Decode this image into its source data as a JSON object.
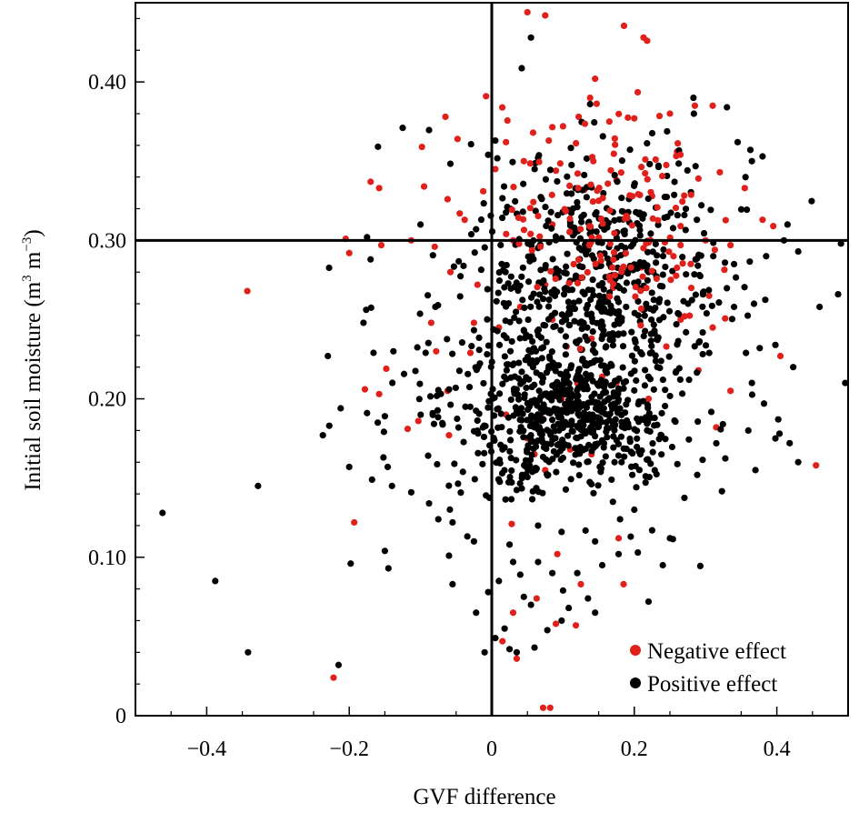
{
  "chart_data": {
    "type": "scatter",
    "title": "",
    "xlabel": "GVF difference",
    "ylabel_parts": [
      "Initial soil moisture (m",
      "3",
      " m",
      "−3",
      ")"
    ],
    "xlim": [
      -0.5,
      0.5
    ],
    "ylim": [
      0,
      0.45
    ],
    "x_ticks": [
      -0.4,
      -0.2,
      0,
      0.2,
      0.4
    ],
    "x_tick_labels": [
      "−0.4",
      "−0.2",
      "0",
      "0.2",
      "0.4"
    ],
    "y_ticks": [
      0,
      0.1,
      0.2,
      0.3,
      0.4
    ],
    "y_tick_labels": [
      "0",
      "0.10",
      "0.20",
      "0.30",
      "0.40"
    ],
    "reference_lines": {
      "x": 0,
      "y": 0.3
    },
    "grid": false,
    "legend_position": "bottom-right",
    "series": [
      {
        "name": "Negative effect",
        "color": "#e0201b",
        "points": [
          [
            0.05,
            0.444
          ],
          [
            0.075,
            0.442
          ],
          [
            0.213,
            0.428
          ],
          [
            0.218,
            0.426
          ],
          [
            -0.008,
            0.391
          ],
          [
            0.145,
            0.402
          ],
          [
            -0.065,
            0.378
          ],
          [
            -0.098,
            0.359
          ],
          [
            -0.048,
            0.364
          ],
          [
            -0.17,
            0.337
          ],
          [
            -0.158,
            0.333
          ],
          [
            -0.095,
            0.334
          ],
          [
            -0.062,
            0.326
          ],
          [
            -0.045,
            0.317
          ],
          [
            -0.038,
            0.313
          ],
          [
            -0.012,
            0.331
          ],
          [
            0.005,
            0.345
          ],
          [
            0.02,
            0.362
          ],
          [
            0.058,
            0.368
          ],
          [
            0.08,
            0.363
          ],
          [
            0.1,
            0.372
          ],
          [
            0.122,
            0.378
          ],
          [
            0.138,
            0.39
          ],
          [
            0.165,
            0.375
          ],
          [
            0.2,
            0.377
          ],
          [
            0.25,
            0.38
          ],
          [
            0.285,
            0.385
          ],
          [
            0.31,
            0.385
          ],
          [
            0.32,
            0.343
          ],
          [
            0.355,
            0.333
          ],
          [
            0.38,
            0.313
          ],
          [
            0.395,
            0.309
          ],
          [
            0.29,
            0.339
          ],
          [
            0.26,
            0.356
          ],
          [
            0.23,
            0.351
          ],
          [
            0.175,
            0.338
          ],
          [
            0.13,
            0.332
          ],
          [
            0.09,
            0.344
          ],
          [
            0.045,
            0.35
          ],
          [
            0.03,
            0.3
          ],
          [
            0.085,
            0.31
          ],
          [
            0.15,
            0.325
          ],
          [
            0.185,
            0.318
          ],
          [
            0.225,
            0.328
          ],
          [
            0.265,
            0.309
          ],
          [
            0.3,
            0.3
          ],
          [
            0.335,
            0.297
          ],
          [
            0.21,
            0.283
          ],
          [
            0.17,
            0.27
          ],
          [
            0.115,
            0.285
          ],
          [
            0.075,
            0.272
          ],
          [
            0.04,
            0.258
          ],
          [
            0.01,
            0.245
          ],
          [
            -0.025,
            0.248
          ],
          [
            -0.02,
            0.272
          ],
          [
            -0.058,
            0.28
          ],
          [
            -0.08,
            0.296
          ],
          [
            -0.113,
            0.3
          ],
          [
            -0.155,
            0.297
          ],
          [
            -0.205,
            0.301
          ],
          [
            -0.2,
            0.292
          ],
          [
            -0.343,
            0.268
          ],
          [
            -0.085,
            0.248
          ],
          [
            -0.078,
            0.23
          ],
          [
            -0.03,
            0.229
          ],
          [
            0.085,
            0.25
          ],
          [
            0.105,
            0.233
          ],
          [
            0.14,
            0.238
          ],
          [
            0.155,
            0.214
          ],
          [
            0.12,
            0.21
          ],
          [
            0.098,
            0.2
          ],
          [
            0.07,
            0.188
          ],
          [
            0.05,
            0.175
          ],
          [
            0.06,
            0.165
          ],
          [
            0.075,
            0.155
          ],
          [
            0.11,
            0.168
          ],
          [
            0.14,
            0.165
          ],
          [
            0.175,
            0.21
          ],
          [
            0.22,
            0.2
          ],
          [
            0.245,
            0.233
          ],
          [
            0.265,
            0.25
          ],
          [
            0.28,
            0.27
          ],
          [
            0.255,
            0.29
          ],
          [
            0.305,
            0.265
          ],
          [
            0.31,
            0.245
          ],
          [
            0.29,
            0.218
          ],
          [
            0.315,
            0.182
          ],
          [
            0.335,
            0.205
          ],
          [
            0.405,
            0.227
          ],
          [
            0.455,
            0.158
          ],
          [
            -0.148,
            0.219
          ],
          [
            -0.178,
            0.206
          ],
          [
            -0.158,
            0.203
          ],
          [
            -0.118,
            0.181
          ],
          [
            -0.103,
            0.186
          ],
          [
            -0.06,
            0.177
          ],
          [
            -0.062,
            0.205
          ],
          [
            -0.193,
            0.122
          ],
          [
            0.02,
            0.19
          ],
          [
            0.028,
            0.121
          ],
          [
            0.092,
            0.102
          ],
          [
            0.178,
            0.112
          ],
          [
            0.125,
            0.083
          ],
          [
            0.185,
            0.083
          ],
          [
            0.03,
            0.065
          ],
          [
            0.063,
            0.074
          ],
          [
            0.09,
            0.058
          ],
          [
            0.118,
            0.057
          ],
          [
            0.015,
            0.047
          ],
          [
            0.035,
            0.036
          ],
          [
            -0.222,
            0.024
          ],
          [
            0.072,
            0.005
          ],
          [
            0.082,
            0.005
          ]
        ]
      },
      {
        "name": "Positive effect",
        "color": "#000000",
        "points": [
          [
            0.055,
            0.428
          ],
          [
            0.138,
            0.386
          ],
          [
            0.283,
            0.39
          ],
          [
            0.33,
            0.384
          ],
          [
            -0.125,
            0.371
          ],
          [
            0.365,
            0.35
          ],
          [
            0.345,
            0.362
          ],
          [
            0.38,
            0.353
          ],
          [
            0.005,
            0.363
          ],
          [
            -0.005,
            0.354
          ],
          [
            -0.1,
            0.31
          ],
          [
            -0.022,
            0.307
          ],
          [
            0.415,
            0.31
          ],
          [
            0.43,
            0.293
          ],
          [
            0.385,
            0.29
          ],
          [
            0.34,
            0.285
          ],
          [
            0.41,
            0.3
          ],
          [
            0.49,
            0.298
          ],
          [
            0.486,
            0.266
          ],
          [
            0.46,
            0.258
          ],
          [
            0.368,
            0.26
          ],
          [
            0.34,
            0.258
          ],
          [
            0.398,
            0.234
          ],
          [
            0.423,
            0.22
          ],
          [
            0.496,
            0.21
          ],
          [
            0.376,
            0.232
          ],
          [
            0.365,
            0.21
          ],
          [
            0.382,
            0.197
          ],
          [
            0.36,
            0.18
          ],
          [
            0.402,
            0.187
          ],
          [
            0.398,
            0.175
          ],
          [
            0.418,
            0.172
          ],
          [
            0.37,
            0.155
          ],
          [
            0.43,
            0.16
          ],
          [
            -0.175,
            0.302
          ],
          [
            -0.17,
            0.288
          ],
          [
            -0.18,
            0.248
          ],
          [
            -0.138,
            0.23
          ],
          [
            -0.212,
            0.194
          ],
          [
            -0.175,
            0.191
          ],
          [
            -0.16,
            0.185
          ],
          [
            -0.15,
            0.189
          ],
          [
            -0.237,
            0.177
          ],
          [
            -0.2,
            0.157
          ],
          [
            -0.152,
            0.163
          ],
          [
            -0.168,
            0.149
          ],
          [
            -0.146,
            0.157
          ],
          [
            -0.14,
            0.145
          ],
          [
            -0.113,
            0.141
          ],
          [
            -0.088,
            0.134
          ],
          [
            -0.075,
            0.124
          ],
          [
            -0.055,
            0.122
          ],
          [
            -0.23,
            0.227
          ],
          [
            -0.228,
            0.183
          ],
          [
            -0.462,
            0.128
          ],
          [
            -0.328,
            0.145
          ],
          [
            -0.388,
            0.085
          ],
          [
            -0.342,
            0.04
          ],
          [
            -0.215,
            0.032
          ],
          [
            -0.198,
            0.096
          ],
          [
            -0.15,
            0.104
          ],
          [
            -0.145,
            0.093
          ],
          [
            -0.06,
            0.101
          ],
          [
            -0.055,
            0.083
          ],
          [
            -0.025,
            0.11
          ],
          [
            -0.008,
            0.139
          ],
          [
            -0.005,
            0.078
          ],
          [
            0.01,
            0.085
          ],
          [
            -0.022,
            0.065
          ],
          [
            0.025,
            0.108
          ],
          [
            0.03,
            0.097
          ],
          [
            0.04,
            0.089
          ],
          [
            0.045,
            0.075
          ],
          [
            0.055,
            0.07
          ],
          [
            0.065,
            0.097
          ],
          [
            0.085,
            0.09
          ],
          [
            0.1,
            0.079
          ],
          [
            0.108,
            0.068
          ],
          [
            0.12,
            0.09
          ],
          [
            0.135,
            0.074
          ],
          [
            0.145,
            0.065
          ],
          [
            0.155,
            0.095
          ],
          [
            0.178,
            0.102
          ],
          [
            0.195,
            0.113
          ],
          [
            0.205,
            0.103
          ],
          [
            0.24,
            0.095
          ],
          [
            0.225,
            0.117
          ],
          [
            0.18,
            0.124
          ],
          [
            0.17,
            0.135
          ],
          [
            0.2,
            0.13
          ],
          [
            0.145,
            0.11
          ],
          [
            0.098,
            0.116
          ],
          [
            0.065,
            0.12
          ],
          [
            0.018,
            0.055
          ],
          [
            0.025,
            0.042
          ],
          [
            0.035,
            0.04
          ],
          [
            0.005,
            0.049
          ],
          [
            0.06,
            0.043
          ],
          [
            0.078,
            0.054
          ],
          [
            0.098,
            0.06
          ],
          [
            0.25,
            0.112
          ],
          [
            0.22,
            0.072
          ],
          [
            -0.01,
            0.04
          ]
        ]
      }
    ],
    "dense_cluster": {
      "series": "Positive effect",
      "center": [
        0.11,
        0.22
      ],
      "count": 1280,
      "core_range_x": [
        -0.02,
        0.34
      ],
      "core_range_y": [
        0.15,
        0.36
      ],
      "overlay_negative_count": 140
    }
  },
  "legend": {
    "items": [
      {
        "label": "Negative effect",
        "color": "#e0201b"
      },
      {
        "label": "Positive effect",
        "color": "#000000"
      }
    ]
  }
}
